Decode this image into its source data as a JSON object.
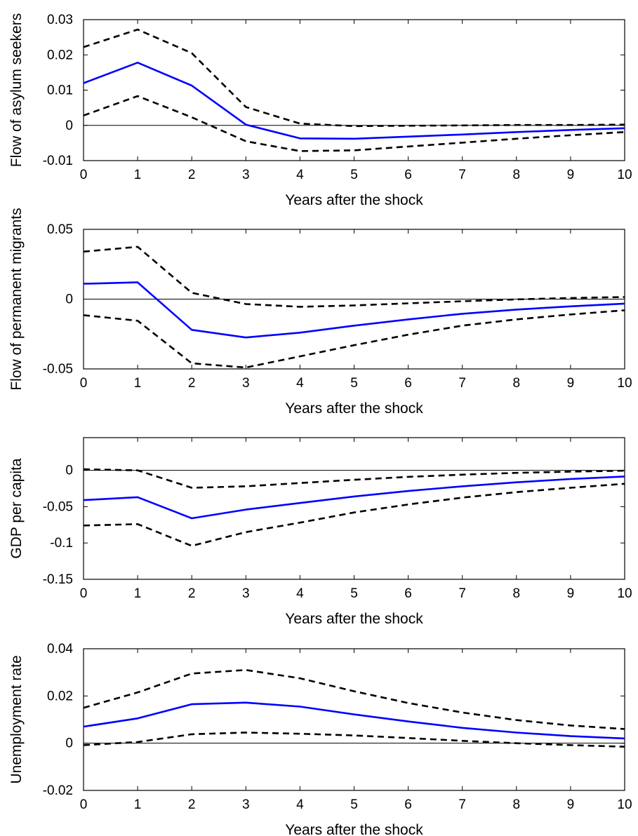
{
  "colors": {
    "estimate": "#0000ff",
    "bands": "#000000",
    "axis": "#000000",
    "zero_line": "#000000"
  },
  "chart_data": [
    {
      "type": "line",
      "xlabel": "Years after the shock",
      "ylabel": "Flow of asylum seekers",
      "x": [
        0,
        1,
        2,
        3,
        4,
        5,
        6,
        7,
        8,
        9,
        10
      ],
      "xlim": [
        0,
        10
      ],
      "ylim": [
        -0.01,
        0.03
      ],
      "xticks": [
        "0",
        "1",
        "2",
        "3",
        "4",
        "5",
        "6",
        "7",
        "8",
        "9",
        "10"
      ],
      "yticks": [
        {
          "value": -0.01,
          "label": "-0.01"
        },
        {
          "value": 0,
          "label": "0"
        },
        {
          "value": 0.01,
          "label": "0.01"
        },
        {
          "value": 0.02,
          "label": "0.02"
        },
        {
          "value": 0.03,
          "label": "0.03"
        }
      ],
      "zero_line": true,
      "grid": false,
      "series": [
        {
          "style": "solid",
          "values": [
            0.012,
            0.0178,
            0.0113,
            0.0002,
            -0.0037,
            -0.0038,
            -0.0032,
            -0.0026,
            -0.0019,
            -0.0013,
            -0.0008
          ]
        },
        {
          "style": "dashed",
          "values": [
            0.0222,
            0.0272,
            0.0205,
            0.0052,
            0.0005,
            -0.0002,
            -0.0001,
            0.0,
            0.0001,
            0.0001,
            0.0002
          ]
        },
        {
          "style": "dashed",
          "values": [
            0.0028,
            0.0083,
            0.0023,
            -0.0045,
            -0.0073,
            -0.0071,
            -0.006,
            -0.0049,
            -0.0038,
            -0.0028,
            -0.0019
          ]
        }
      ]
    },
    {
      "type": "line",
      "xlabel": "Years after the shock",
      "ylabel": "Flow of permanent migrants",
      "x": [
        0,
        1,
        2,
        3,
        4,
        5,
        6,
        7,
        8,
        9,
        10
      ],
      "xlim": [
        0,
        10
      ],
      "ylim": [
        -0.05,
        0.05
      ],
      "xticks": [
        "0",
        "1",
        "2",
        "3",
        "4",
        "5",
        "6",
        "7",
        "8",
        "9",
        "10"
      ],
      "yticks": [
        {
          "value": -0.05,
          "label": "-0.05"
        },
        {
          "value": 0,
          "label": "0"
        },
        {
          "value": 0.05,
          "label": "0.05"
        }
      ],
      "zero_line": true,
      "grid": false,
      "series": [
        {
          "style": "solid",
          "values": [
            0.011,
            0.012,
            -0.022,
            -0.0275,
            -0.024,
            -0.019,
            -0.0145,
            -0.0105,
            -0.0075,
            -0.0052,
            -0.0032
          ]
        },
        {
          "style": "dashed",
          "values": [
            0.034,
            0.0375,
            0.0045,
            -0.0035,
            -0.0055,
            -0.0045,
            -0.003,
            -0.0015,
            -0.0002,
            0.0008,
            0.0015
          ]
        },
        {
          "style": "dashed",
          "values": [
            -0.0115,
            -0.0155,
            -0.046,
            -0.049,
            -0.041,
            -0.033,
            -0.0255,
            -0.019,
            -0.0145,
            -0.011,
            -0.008
          ]
        }
      ]
    },
    {
      "type": "line",
      "xlabel": "Years after the shock",
      "ylabel": "GDP per capita",
      "x": [
        0,
        1,
        2,
        3,
        4,
        5,
        6,
        7,
        8,
        9,
        10
      ],
      "xlim": [
        0,
        10
      ],
      "ylim": [
        -0.15,
        0.045
      ],
      "xticks": [
        "0",
        "1",
        "2",
        "3",
        "4",
        "5",
        "6",
        "7",
        "8",
        "9",
        "10"
      ],
      "yticks": [
        {
          "value": -0.15,
          "label": "-0.15"
        },
        {
          "value": -0.1,
          "label": "-0.1"
        },
        {
          "value": -0.05,
          "label": "-0.05"
        },
        {
          "value": 0,
          "label": "0"
        }
      ],
      "zero_line": true,
      "grid": false,
      "series": [
        {
          "style": "solid",
          "values": [
            -0.041,
            -0.037,
            -0.066,
            -0.054,
            -0.045,
            -0.036,
            -0.0285,
            -0.022,
            -0.0165,
            -0.012,
            -0.0085
          ]
        },
        {
          "style": "dashed",
          "values": [
            0.0015,
            0.0,
            -0.024,
            -0.022,
            -0.0175,
            -0.013,
            -0.009,
            -0.006,
            -0.0035,
            -0.0018,
            -0.0005
          ]
        },
        {
          "style": "dashed",
          "values": [
            -0.076,
            -0.074,
            -0.104,
            -0.085,
            -0.072,
            -0.058,
            -0.047,
            -0.0375,
            -0.03,
            -0.024,
            -0.0185
          ]
        }
      ]
    },
    {
      "type": "line",
      "xlabel": "Years after the shock",
      "ylabel": "Unemployment rate",
      "x": [
        0,
        1,
        2,
        3,
        4,
        5,
        6,
        7,
        8,
        9,
        10
      ],
      "xlim": [
        0,
        10
      ],
      "ylim": [
        -0.02,
        0.04
      ],
      "xticks": [
        "0",
        "1",
        "2",
        "3",
        "4",
        "5",
        "6",
        "7",
        "8",
        "9",
        "10"
      ],
      "yticks": [
        {
          "value": -0.02,
          "label": "-0.02"
        },
        {
          "value": 0,
          "label": "0"
        },
        {
          "value": 0.02,
          "label": "0.02"
        },
        {
          "value": 0.04,
          "label": "0.04"
        }
      ],
      "zero_line": true,
      "grid": false,
      "series": [
        {
          "style": "solid",
          "values": [
            0.007,
            0.0105,
            0.0165,
            0.0172,
            0.0155,
            0.0122,
            0.0092,
            0.0065,
            0.0045,
            0.003,
            0.002
          ]
        },
        {
          "style": "dashed",
          "values": [
            0.015,
            0.0215,
            0.0295,
            0.031,
            0.0275,
            0.022,
            0.017,
            0.013,
            0.0098,
            0.0075,
            0.006
          ]
        },
        {
          "style": "dashed",
          "values": [
            -0.0008,
            0.0005,
            0.0038,
            0.0045,
            0.004,
            0.0033,
            0.0022,
            0.001,
            0.0,
            -0.0008,
            -0.0015
          ]
        }
      ]
    }
  ]
}
